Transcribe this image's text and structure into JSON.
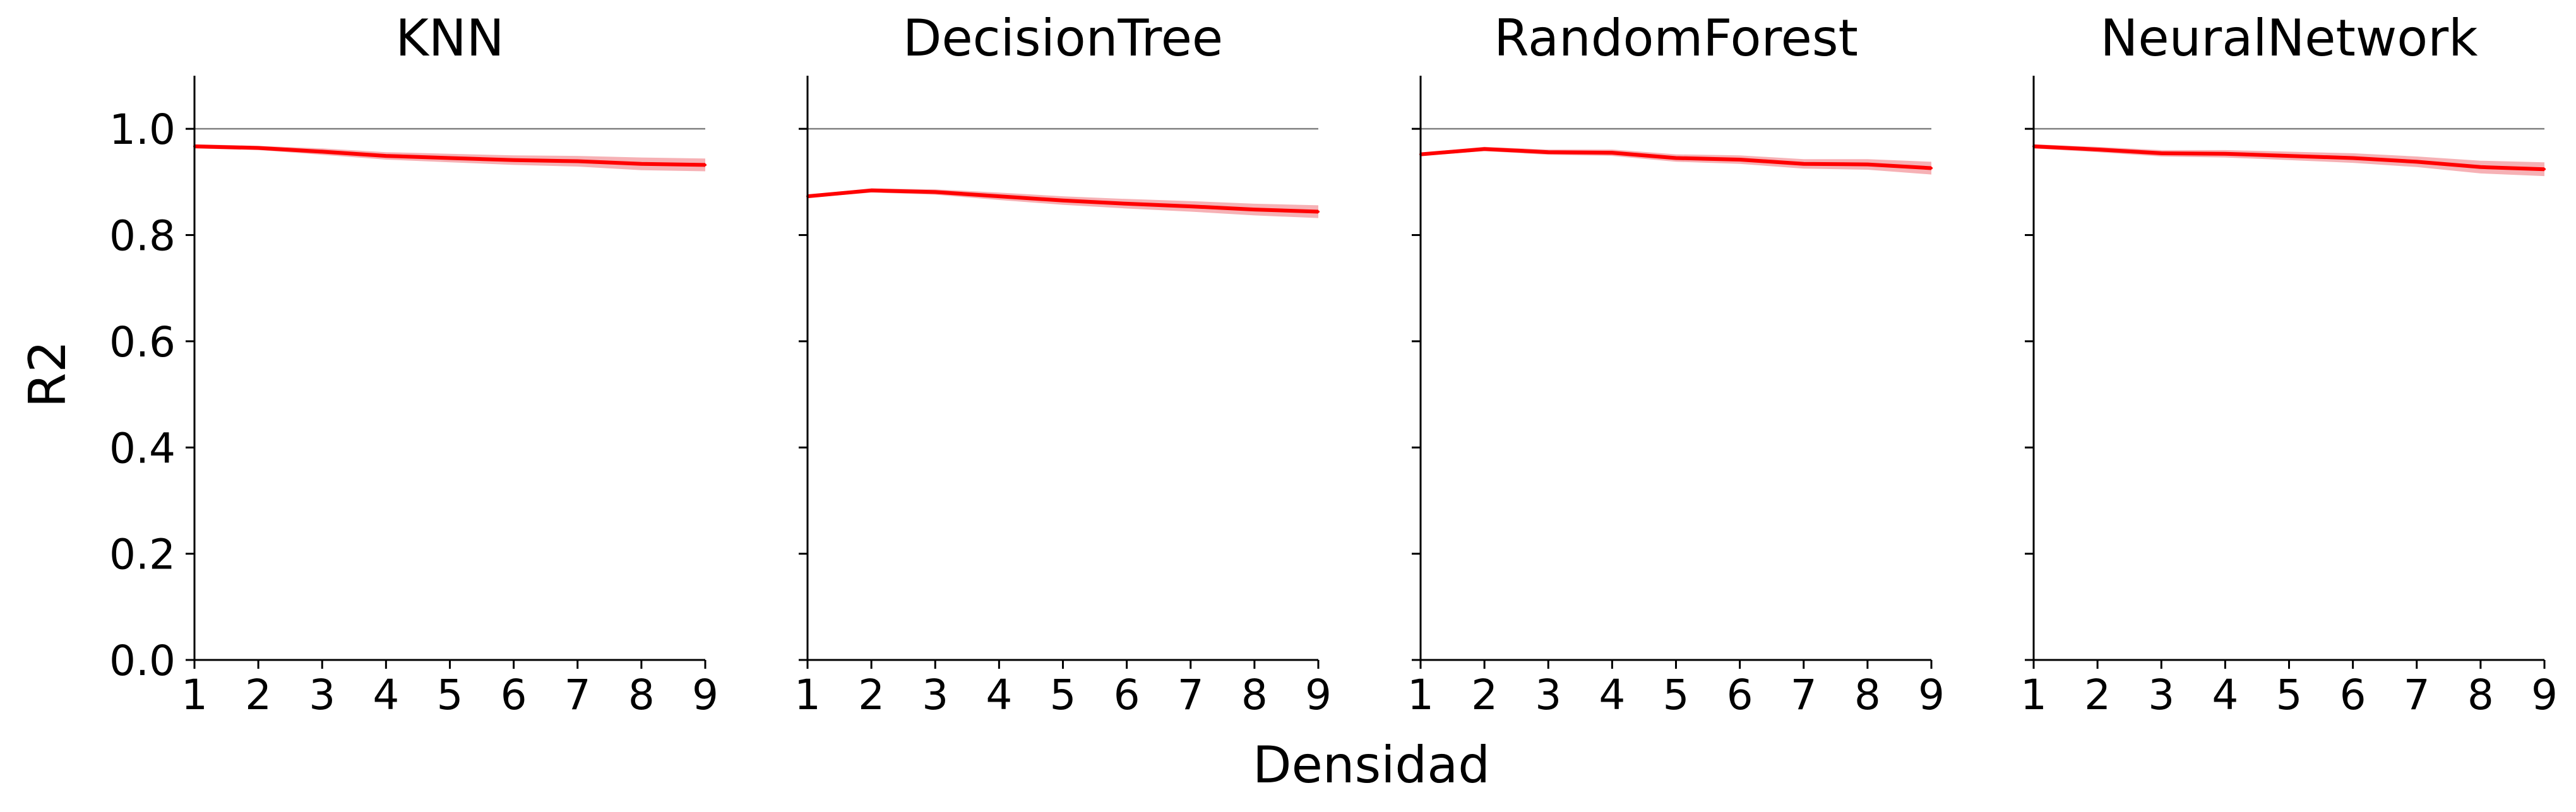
{
  "chart_data": {
    "type": "line",
    "xlabel": "Densidad",
    "ylabel": "R2",
    "xlim": [
      1,
      9
    ],
    "ylim": [
      0.0,
      1.1
    ],
    "xticks": [
      "1",
      "2",
      "3",
      "4",
      "5",
      "6",
      "7",
      "8",
      "9"
    ],
    "yticks": [
      "0.0",
      "0.2",
      "0.4",
      "0.6",
      "0.8",
      "1.0"
    ],
    "reference_line": 1.0,
    "line_color": "#ff0000",
    "band_color": "#f4a3a8",
    "reference_color": "#808080",
    "grid": false,
    "panels": [
      {
        "title": "KNN",
        "x": [
          1,
          2,
          3,
          4,
          5,
          6,
          7,
          8,
          9
        ],
        "values": [
          0.967,
          0.964,
          0.957,
          0.949,
          0.945,
          0.941,
          0.939,
          0.934,
          0.932
        ],
        "lower": [
          0.963,
          0.96,
          0.951,
          0.942,
          0.937,
          0.932,
          0.929,
          0.922,
          0.92
        ],
        "upper": [
          0.971,
          0.968,
          0.963,
          0.956,
          0.953,
          0.95,
          0.949,
          0.946,
          0.944
        ]
      },
      {
        "title": "DecisionTree",
        "x": [
          1,
          2,
          3,
          4,
          5,
          6,
          7,
          8,
          9
        ],
        "values": [
          0.873,
          0.884,
          0.881,
          0.873,
          0.865,
          0.859,
          0.854,
          0.848,
          0.844
        ],
        "lower": [
          0.87,
          0.88,
          0.876,
          0.866,
          0.857,
          0.85,
          0.844,
          0.837,
          0.832
        ],
        "upper": [
          0.876,
          0.888,
          0.886,
          0.88,
          0.873,
          0.868,
          0.864,
          0.859,
          0.856
        ]
      },
      {
        "title": "RandomForest",
        "x": [
          1,
          2,
          3,
          4,
          5,
          6,
          7,
          8,
          9
        ],
        "values": [
          0.952,
          0.962,
          0.956,
          0.955,
          0.945,
          0.942,
          0.934,
          0.933,
          0.926
        ],
        "lower": [
          0.949,
          0.958,
          0.951,
          0.949,
          0.938,
          0.934,
          0.925,
          0.923,
          0.914
        ],
        "upper": [
          0.955,
          0.966,
          0.961,
          0.961,
          0.952,
          0.95,
          0.943,
          0.943,
          0.938
        ]
      },
      {
        "title": "NeuralNetwork",
        "x": [
          1,
          2,
          3,
          4,
          5,
          6,
          7,
          8,
          9
        ],
        "values": [
          0.967,
          0.961,
          0.954,
          0.953,
          0.949,
          0.945,
          0.938,
          0.928,
          0.924
        ],
        "lower": [
          0.963,
          0.956,
          0.948,
          0.946,
          0.941,
          0.936,
          0.928,
          0.916,
          0.911
        ],
        "upper": [
          0.971,
          0.966,
          0.96,
          0.96,
          0.957,
          0.954,
          0.948,
          0.94,
          0.937
        ]
      }
    ]
  }
}
